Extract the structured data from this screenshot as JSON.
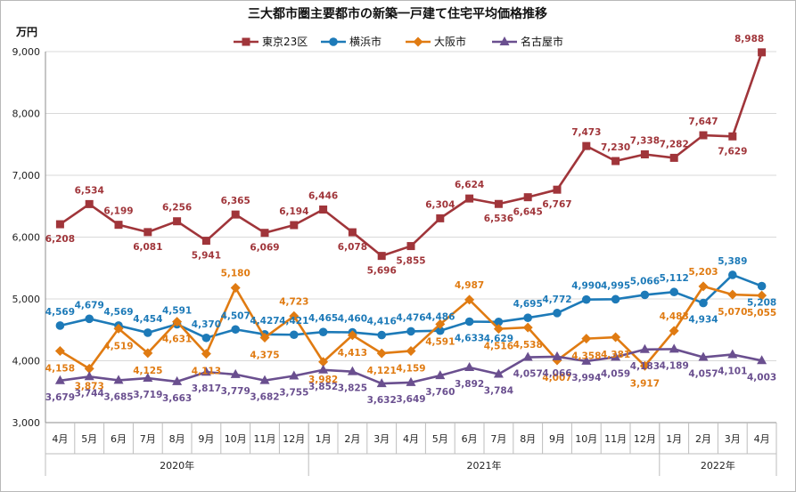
{
  "chart_data": {
    "type": "line",
    "title": "三大都市圏主要都市の新築一戸建て住宅平均価格推移",
    "ylabel": "万円",
    "ylim": [
      3000,
      9000
    ],
    "yticks": [
      3000,
      4000,
      5000,
      6000,
      7000,
      8000,
      9000
    ],
    "ytick_labels": [
      "3,000",
      "4,000",
      "5,000",
      "6,000",
      "7,000",
      "8,000",
      "9,000"
    ],
    "categories": [
      "4月",
      "5月",
      "6月",
      "7月",
      "8月",
      "9月",
      "10月",
      "11月",
      "12月",
      "1月",
      "2月",
      "3月",
      "4月",
      "5月",
      "6月",
      "7月",
      "8月",
      "9月",
      "10月",
      "11月",
      "12月",
      "1月",
      "2月",
      "3月",
      "4月"
    ],
    "year_groups": [
      {
        "label": "2020年",
        "start": 0,
        "end": 8
      },
      {
        "label": "2021年",
        "start": 9,
        "end": 20
      },
      {
        "label": "2022年",
        "start": 21,
        "end": 24
      }
    ],
    "legend_position": "top",
    "grid": true,
    "series": [
      {
        "name": "東京23区",
        "color": "#a0353a",
        "marker": "square",
        "values": [
          6208,
          6534,
          6199,
          6081,
          6256,
          5941,
          6365,
          6069,
          6194,
          6446,
          6078,
          5696,
          5855,
          6304,
          6624,
          6536,
          6645,
          6767,
          7473,
          7230,
          7338,
          7282,
          7647,
          7629,
          8988
        ],
        "labels": [
          "6,208",
          "6,534",
          "6,199",
          "6,081",
          "6,256",
          "5,941",
          "6,365",
          "6,069",
          "6,194",
          "6,446",
          "6,078",
          "5,696",
          "5,855",
          "6,304",
          "6,624",
          "6,536",
          "6,645",
          "6,767",
          "7,473",
          "7,230",
          "7,338",
          "7,282",
          "7,647",
          "7,629",
          "8,988"
        ]
      },
      {
        "name": "横浜市",
        "color": "#1d7ab8",
        "marker": "circle",
        "values": [
          4569,
          4679,
          4569,
          4454,
          4591,
          4370,
          4507,
          4427,
          4421,
          4465,
          4460,
          4416,
          4476,
          4486,
          4633,
          4629,
          4695,
          4772,
          4990,
          4995,
          5066,
          5112,
          4934,
          5389,
          5208
        ],
        "labels": [
          "4,569",
          "4,679",
          "4,569",
          "4,454",
          "4,591",
          "4,370",
          "4,507",
          "4,427",
          "4,421",
          "4,465",
          "4,460",
          "4,416",
          "4,476",
          "4,486",
          "4,633",
          "4,629",
          "4,695",
          "4,772",
          "4,990",
          "4,995",
          "5,066",
          "5,112",
          "4,934",
          "5,389",
          "5,208"
        ]
      },
      {
        "name": "大阪市",
        "color": "#e07b12",
        "marker": "diamond",
        "values": [
          4158,
          3873,
          4519,
          4125,
          4631,
          4113,
          5180,
          4375,
          4723,
          3982,
          4413,
          4121,
          4159,
          4591,
          4987,
          4516,
          4538,
          4007,
          4358,
          4381,
          3917,
          4483,
          5203,
          5070,
          5055
        ],
        "labels": [
          "4,158",
          "3,873",
          "4,519",
          "4,125",
          "4,631",
          "4,113",
          "5,180",
          "4,375",
          "4,723",
          "3,982",
          "4,413",
          "4,121",
          "4,159",
          "4,591",
          "4,987",
          "4,516",
          "4,538",
          "4,007",
          "4,358",
          "4,381",
          "3,917",
          "4,483",
          "5,203",
          "5,070",
          "5,055"
        ]
      },
      {
        "name": "名古屋市",
        "color": "#6a4f8f",
        "marker": "triangle",
        "values": [
          3679,
          3744,
          3685,
          3719,
          3663,
          3817,
          3779,
          3682,
          3755,
          3852,
          3825,
          3632,
          3649,
          3760,
          3892,
          3784,
          4057,
          4066,
          3994,
          4059,
          4183,
          4189,
          4057,
          4101,
          4003
        ],
        "labels": [
          "3,679",
          "3,744",
          "3,685",
          "3,719",
          "3,663",
          "3,817",
          "3,779",
          "3,682",
          "3,755",
          "3,852",
          "3,825",
          "3,632",
          "3,649",
          "3,760",
          "3,892",
          "3,784",
          "4,057",
          "4,066",
          "3,994",
          "4,059",
          "4,183",
          "4,189",
          "4,057",
          "4,101",
          "4,003"
        ]
      }
    ]
  }
}
